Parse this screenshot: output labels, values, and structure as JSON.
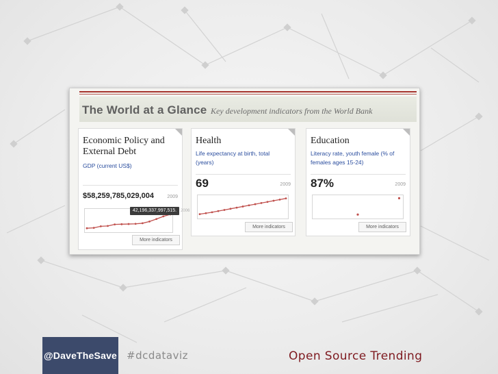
{
  "screenshot": {
    "title": "The World at a Glance",
    "subtitle": "Key development indicators from the World Bank",
    "panels": [
      {
        "title": "Economic Policy and External Debt",
        "indicator": "GDP (current US$)",
        "value": "$58,259,785,029,004",
        "year": "2009",
        "tooltip": "42,196,337,997,515.",
        "tooltip_tail": "2006",
        "more": "More indicators",
        "series": [
          0.1,
          0.12,
          0.2,
          0.22,
          0.3,
          0.31,
          0.32,
          0.33,
          0.36,
          0.45,
          0.58,
          0.72,
          0.82
        ]
      },
      {
        "title": "Health",
        "indicator": "Life expectancy at birth, total (years)",
        "value": "69",
        "year": "2009",
        "more": "More indicators",
        "series": [
          0.12,
          0.17,
          0.22,
          0.28,
          0.34,
          0.4,
          0.46,
          0.52,
          0.58,
          0.64,
          0.7,
          0.76,
          0.82,
          0.88,
          0.94
        ]
      },
      {
        "title": "Education",
        "indicator": "Literacy rate, youth female (% of females ages 15-24)",
        "value": "87%",
        "year": "2009",
        "more": "More indicators",
        "points": [
          [
            0.5,
            0.1
          ],
          [
            0.98,
            0.95
          ]
        ]
      }
    ]
  },
  "footer": {
    "handle": "@DaveTheSave",
    "hashtag": "#dcdataviz",
    "title": "Open Source Trending"
  },
  "colors": {
    "accent": "#a6332c",
    "line": "#c0504d",
    "handle_bg": "#3c4a6b",
    "footer_title": "#7e1a20"
  }
}
